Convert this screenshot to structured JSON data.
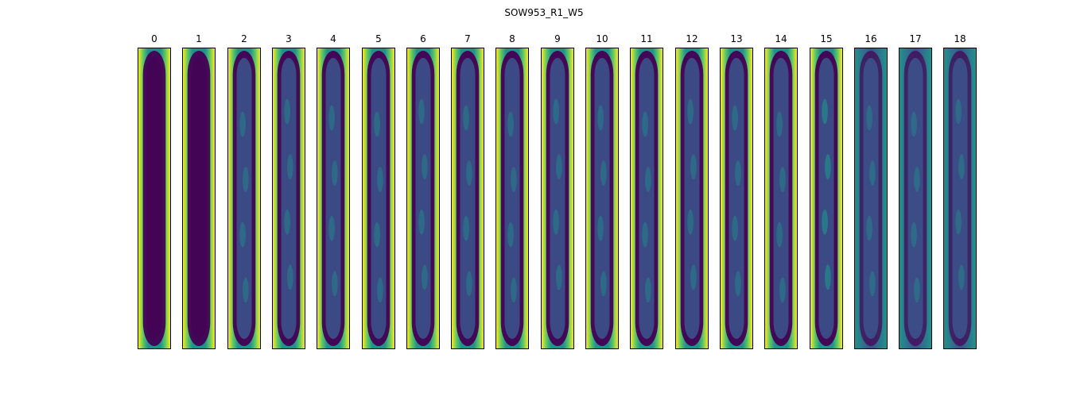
{
  "figure": {
    "title": "SOW953_R1_W5",
    "colormap": [
      "#440154",
      "#3b528b",
      "#21918c",
      "#5ec962",
      "#fde725"
    ],
    "panels": [
      {
        "label": "0",
        "style": "diffuse"
      },
      {
        "label": "1",
        "style": "diffuse"
      },
      {
        "label": "2",
        "style": "shell"
      },
      {
        "label": "3",
        "style": "shell"
      },
      {
        "label": "4",
        "style": "shell"
      },
      {
        "label": "5",
        "style": "shell"
      },
      {
        "label": "6",
        "style": "shell"
      },
      {
        "label": "7",
        "style": "shell"
      },
      {
        "label": "8",
        "style": "shell"
      },
      {
        "label": "9",
        "style": "shell"
      },
      {
        "label": "10",
        "style": "shell"
      },
      {
        "label": "11",
        "style": "shell"
      },
      {
        "label": "12",
        "style": "shell"
      },
      {
        "label": "13",
        "style": "shell"
      },
      {
        "label": "14",
        "style": "shell"
      },
      {
        "label": "15",
        "style": "bright"
      },
      {
        "label": "16",
        "style": "dim"
      },
      {
        "label": "17",
        "style": "dim"
      },
      {
        "label": "18",
        "style": "dim"
      }
    ]
  }
}
